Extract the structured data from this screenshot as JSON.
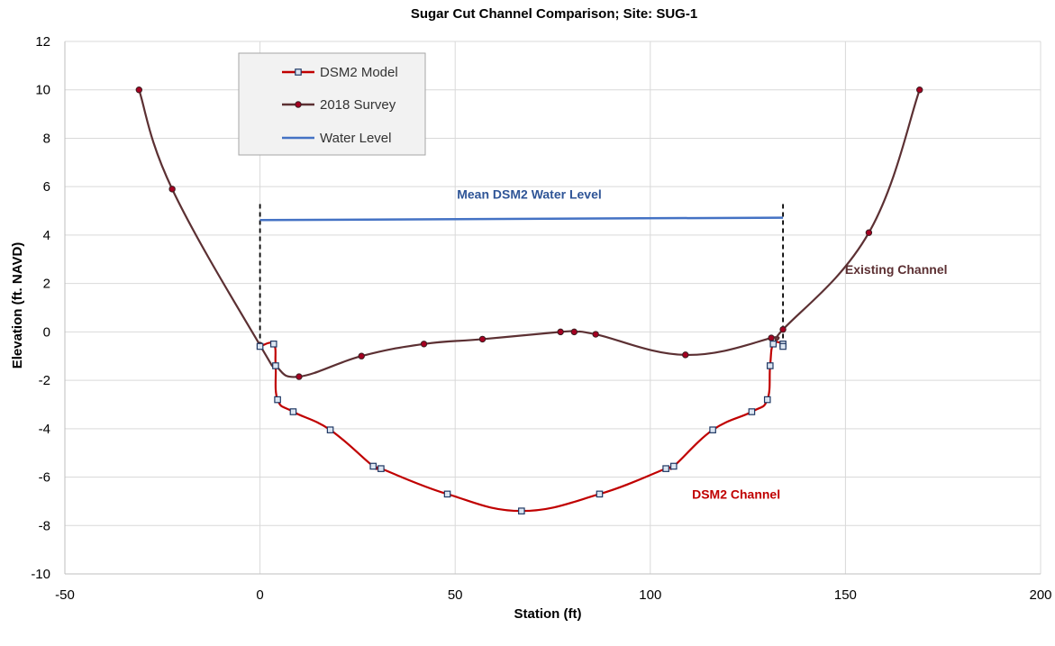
{
  "chart_data": {
    "type": "line",
    "title": "Sugar Cut Channel Comparison; Site: SUG-1",
    "xlabel": "Station (ft)",
    "ylabel": "Elevation (ft. NAVD)",
    "xlim": [
      -50,
      200
    ],
    "ylim": [
      -10,
      12
    ],
    "xticks": [
      -50,
      0,
      50,
      100,
      150,
      200
    ],
    "yticks": [
      -10,
      -8,
      -6,
      -4,
      -2,
      0,
      2,
      4,
      6,
      8,
      10,
      12
    ],
    "grid": true,
    "legend_position": "top-left",
    "series": [
      {
        "name": "DSM2 Model",
        "color": "#c00000",
        "marker": "square",
        "x": [
          0,
          3.5,
          4.0,
          4.5,
          8.5,
          18,
          29,
          31,
          48,
          67,
          87,
          104,
          106,
          116,
          126,
          130,
          130.7,
          131.5,
          134,
          134
        ],
        "y": [
          -0.6,
          -0.5,
          -1.4,
          -2.8,
          -3.3,
          -4.05,
          -5.55,
          -5.65,
          -6.7,
          -7.4,
          -6.7,
          -5.65,
          -5.55,
          -4.05,
          -3.3,
          -2.8,
          -1.4,
          -0.5,
          -0.5,
          -0.6
        ]
      },
      {
        "name": "2018 Survey",
        "color": "#5c3033",
        "marker": "circle",
        "x": [
          -31,
          -22.5,
          0,
          4,
          10,
          26,
          42,
          57,
          77,
          80.5,
          86,
          109,
          131,
          134,
          156,
          169
        ],
        "y": [
          10,
          5.9,
          -0.55,
          -1.4,
          -1.85,
          -1.0,
          -0.5,
          -0.3,
          0,
          0,
          -0.1,
          -0.95,
          -0.25,
          0.1,
          4.1,
          10
        ]
      },
      {
        "name": "Water Level",
        "color": "#4472c4",
        "marker": "none",
        "x": [
          0,
          134
        ],
        "y": [
          4.62,
          4.72
        ]
      }
    ],
    "annotations": [
      {
        "text": "Mean DSM2 Water Level",
        "color": "#2f5597",
        "x": 69,
        "y": 5.5
      },
      {
        "text": "Existing Channel",
        "color": "#5c3033",
        "x": 163,
        "y": 2.4
      },
      {
        "text": "DSM2 Channel",
        "color": "#c00000",
        "x": 122,
        "y": -6.9
      }
    ],
    "reference_lines": [
      {
        "style": "dashed",
        "color": "#000000",
        "x": 0,
        "y": [
          -0.6,
          5.4
        ]
      },
      {
        "style": "dashed",
        "color": "#000000",
        "x": 134,
        "y": [
          -0.6,
          5.3
        ]
      }
    ]
  }
}
